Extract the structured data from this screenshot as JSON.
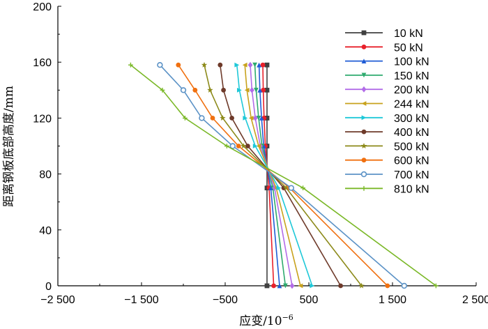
{
  "chart_data": {
    "type": "line",
    "title": "",
    "xlabel": "应变/10",
    "xlabel_exp": "−6",
    "ylabel": "距离钢板底部高度/mm",
    "xlim": [
      -2500,
      2500
    ],
    "ylim": [
      0,
      200
    ],
    "xticks": [
      -2500,
      -1500,
      -500,
      500,
      1500,
      2500
    ],
    "xtick_labels": [
      "−2 500",
      "−1 500",
      "−500",
      "500",
      "1 500",
      "2 500"
    ],
    "yticks": [
      0,
      40,
      80,
      120,
      160,
      200
    ],
    "ytick_labels": [
      "0",
      "40",
      "80",
      "120",
      "160",
      "200"
    ],
    "grid": false,
    "legend_position": "top-right",
    "series": [
      {
        "name": "10 kN",
        "color": "#404040",
        "marker": "square",
        "points": [
          [
            0,
            0
          ],
          [
            0,
            70
          ],
          [
            0,
            100
          ],
          [
            0,
            120
          ],
          [
            0,
            140
          ],
          [
            0,
            158
          ]
        ]
      },
      {
        "name": "50 kN",
        "color": "#e8202a",
        "marker": "circle",
        "points": [
          [
            80,
            0
          ],
          [
            25,
            70
          ],
          [
            -20,
            100
          ],
          [
            -35,
            120
          ],
          [
            -45,
            140
          ],
          [
            -50,
            158
          ]
        ]
      },
      {
        "name": "100 kN",
        "color": "#1f5cd6",
        "marker": "triangle-up",
        "points": [
          [
            150,
            0
          ],
          [
            45,
            70
          ],
          [
            -40,
            100
          ],
          [
            -65,
            120
          ],
          [
            -85,
            140
          ],
          [
            -95,
            158
          ]
        ]
      },
      {
        "name": "150 kN",
        "color": "#2eaa6e",
        "marker": "triangle-down",
        "points": [
          [
            220,
            0
          ],
          [
            70,
            70
          ],
          [
            -60,
            100
          ],
          [
            -100,
            120
          ],
          [
            -130,
            140
          ],
          [
            -145,
            158
          ]
        ]
      },
      {
        "name": "200 kN",
        "color": "#b26ce8",
        "marker": "diamond",
        "points": [
          [
            300,
            0
          ],
          [
            90,
            70
          ],
          [
            -80,
            100
          ],
          [
            -140,
            120
          ],
          [
            -180,
            140
          ],
          [
            -200,
            158
          ]
        ]
      },
      {
        "name": "244 kN",
        "color": "#c8a21c",
        "marker": "triangle-left",
        "points": [
          [
            400,
            0
          ],
          [
            110,
            70
          ],
          [
            -100,
            100
          ],
          [
            -190,
            120
          ],
          [
            -240,
            140
          ],
          [
            -265,
            158
          ]
        ]
      },
      {
        "name": "300 kN",
        "color": "#1ec8d8",
        "marker": "triangle-right",
        "points": [
          [
            540,
            0
          ],
          [
            140,
            70
          ],
          [
            -140,
            100
          ],
          [
            -260,
            120
          ],
          [
            -330,
            140
          ],
          [
            -360,
            158
          ]
        ]
      },
      {
        "name": "400 kN",
        "color": "#6e3a2a",
        "marker": "circle",
        "points": [
          [
            880,
            0
          ],
          [
            200,
            70
          ],
          [
            -230,
            100
          ],
          [
            -420,
            120
          ],
          [
            -520,
            140
          ],
          [
            -560,
            158
          ]
        ]
      },
      {
        "name": "500 kN",
        "color": "#8c8a1a",
        "marker": "star",
        "points": [
          [
            1130,
            0
          ],
          [
            230,
            70
          ],
          [
            -280,
            100
          ],
          [
            -530,
            120
          ],
          [
            -680,
            140
          ],
          [
            -750,
            158
          ]
        ]
      },
      {
        "name": "600 kN",
        "color": "#f07010",
        "marker": "circle",
        "points": [
          [
            1440,
            0
          ],
          [
            270,
            70
          ],
          [
            -340,
            100
          ],
          [
            -650,
            120
          ],
          [
            -860,
            140
          ],
          [
            -1060,
            158
          ]
        ]
      },
      {
        "name": "700 kN",
        "color": "#5b92c6",
        "marker": "circle-open",
        "points": [
          [
            1640,
            0
          ],
          [
            290,
            70
          ],
          [
            -410,
            100
          ],
          [
            -780,
            120
          ],
          [
            -1000,
            140
          ],
          [
            -1280,
            158
          ]
        ]
      },
      {
        "name": "810 kN",
        "color": "#7ab827",
        "marker": "plus",
        "points": [
          [
            2020,
            0
          ],
          [
            430,
            70
          ],
          [
            -480,
            100
          ],
          [
            -980,
            120
          ],
          [
            -1250,
            140
          ],
          [
            -1630,
            158
          ]
        ]
      }
    ]
  }
}
